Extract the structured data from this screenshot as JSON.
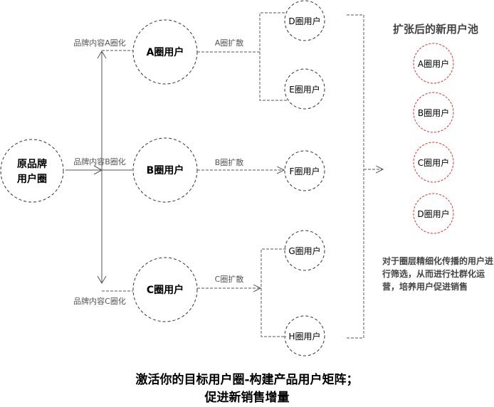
{
  "source": {
    "line1": "原品牌",
    "line2": "用户圈"
  },
  "circles": {
    "a": "A圈用户",
    "b": "B圈用户",
    "c": "C圈用户",
    "d": "D圈用户",
    "e": "E圈用户",
    "f": "F圈用户",
    "g": "G圈用户",
    "h": "H圈用户"
  },
  "edges": {
    "to_a": "品牌内容A圈化",
    "to_b": "品牌内容B圈化",
    "to_c": "品牌内容C圈化",
    "a_spread": "A圈扩散",
    "b_spread": "B圈扩散",
    "c_spread": "C圈扩散"
  },
  "pool": {
    "title": "扩张后的新用户池",
    "items": [
      "A圈用户",
      "B圈用户",
      "C圈用户",
      "D圈用户"
    ],
    "color": "#e03030"
  },
  "description": "对于圈层精细化传播的用户进行筛选，从而进行社群化运营，培养用户促进销售",
  "footer": {
    "line1": "激活你的目标用户圈-构建产品用户矩阵；",
    "line2": "促进新销售增量"
  }
}
